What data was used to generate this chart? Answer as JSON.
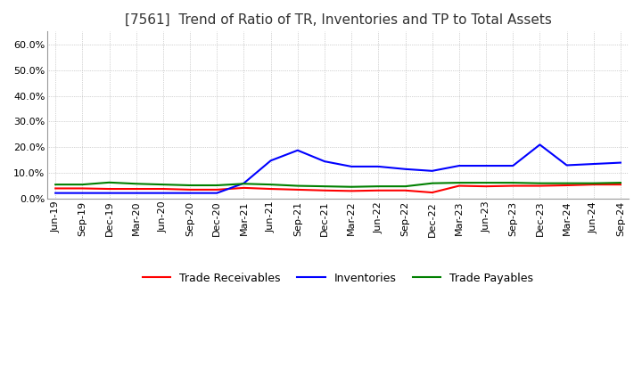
{
  "title": "[7561]  Trend of Ratio of TR, Inventories and TP to Total Assets",
  "ylim": [
    0.0,
    0.65
  ],
  "yticks": [
    0.0,
    0.1,
    0.2,
    0.3,
    0.4,
    0.5,
    0.6
  ],
  "x_labels": [
    "Jun-19",
    "Sep-19",
    "Dec-19",
    "Mar-20",
    "Jun-20",
    "Sep-20",
    "Dec-20",
    "Mar-21",
    "Jun-21",
    "Sep-21",
    "Dec-21",
    "Mar-22",
    "Jun-22",
    "Sep-22",
    "Dec-22",
    "Mar-23",
    "Jun-23",
    "Sep-23",
    "Dec-23",
    "Mar-24",
    "Jun-24",
    "Sep-24"
  ],
  "trade_receivables": [
    0.04,
    0.04,
    0.038,
    0.038,
    0.038,
    0.035,
    0.035,
    0.042,
    0.038,
    0.035,
    0.032,
    0.03,
    0.032,
    0.032,
    0.024,
    0.05,
    0.048,
    0.05,
    0.05,
    0.052,
    0.055,
    0.055
  ],
  "inventories": [
    0.022,
    0.022,
    0.022,
    0.022,
    0.022,
    0.022,
    0.022,
    0.06,
    0.148,
    0.188,
    0.145,
    0.125,
    0.125,
    0.115,
    0.108,
    0.128,
    0.128,
    0.128,
    0.21,
    0.13,
    0.135,
    0.14
  ],
  "trade_payables": [
    0.055,
    0.055,
    0.063,
    0.058,
    0.055,
    0.052,
    0.052,
    0.058,
    0.055,
    0.05,
    0.048,
    0.046,
    0.048,
    0.048,
    0.06,
    0.062,
    0.062,
    0.062,
    0.06,
    0.06,
    0.06,
    0.062
  ],
  "tr_color": "#ff0000",
  "inv_color": "#0000ff",
  "tp_color": "#008000",
  "tr_label": "Trade Receivables",
  "inv_label": "Inventories",
  "tp_label": "Trade Payables",
  "background_color": "#ffffff",
  "grid_color": "#aaaaaa",
  "title_fontsize": 11,
  "tick_fontsize": 8,
  "legend_fontsize": 9
}
